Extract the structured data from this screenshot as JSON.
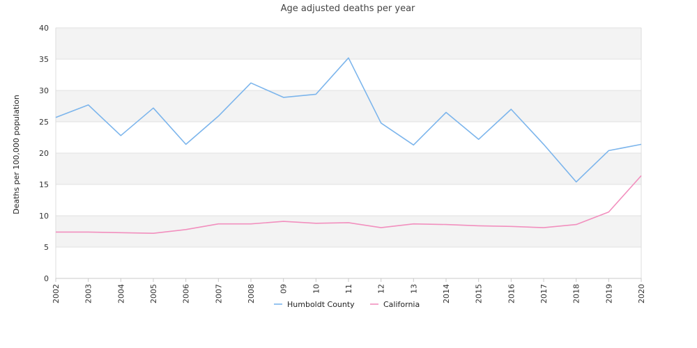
{
  "chart_data": {
    "type": "line",
    "title": "Age adjusted deaths per year",
    "xlabel": "",
    "ylabel": "Deaths per 100,000 population",
    "x": [
      "2002",
      "2003",
      "2004",
      "2005",
      "2006",
      "2007",
      "2008",
      "09",
      "10",
      "11",
      "12",
      "13",
      "2014",
      "2015",
      "2016",
      "2017",
      "2018",
      "2019",
      "2020"
    ],
    "ylim": [
      0,
      40
    ],
    "yticks": [
      0,
      5,
      10,
      15,
      20,
      25,
      30,
      35,
      40
    ],
    "grid": true,
    "legend_position": "bottom",
    "series": [
      {
        "name": "Humboldt County",
        "color": "#7cb5ec",
        "values": [
          25.7,
          27.7,
          22.8,
          27.2,
          21.4,
          25.9,
          31.2,
          28.9,
          29.4,
          35.2,
          24.8,
          21.3,
          26.5,
          22.2,
          27.0,
          21.4,
          15.4,
          20.4,
          21.4
        ]
      },
      {
        "name": "California",
        "color": "#f28fbe",
        "values": [
          7.4,
          7.4,
          7.3,
          7.2,
          7.8,
          8.7,
          8.7,
          9.1,
          8.8,
          8.9,
          8.1,
          8.7,
          8.6,
          8.4,
          8.3,
          8.1,
          8.6,
          10.6,
          16.4
        ]
      }
    ]
  }
}
